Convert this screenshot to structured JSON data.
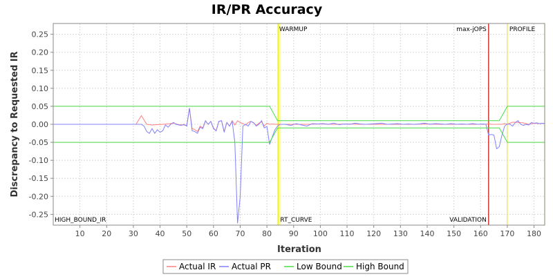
{
  "chart_data": {
    "type": "line",
    "title": "IR/PR Accuracy",
    "xlabel": "Iteration",
    "ylabel": "Discrepancy to Requested IR",
    "xlim": [
      0,
      184
    ],
    "ylim": [
      -0.28,
      0.28
    ],
    "x_ticks": [
      10,
      20,
      30,
      40,
      50,
      60,
      70,
      80,
      90,
      100,
      110,
      120,
      130,
      140,
      150,
      160,
      170,
      180
    ],
    "y_ticks": [
      -0.25,
      -0.2,
      -0.15,
      -0.1,
      -0.05,
      0.0,
      0.05,
      0.1,
      0.15,
      0.2,
      0.25
    ],
    "y_tick_labels": [
      "-0.25",
      "-0.20",
      "-0.15",
      "-0.10",
      "-0.05",
      "0.00",
      "0.05",
      "0.10",
      "0.15",
      "0.20",
      "0.25"
    ],
    "grid": true,
    "plot_background": "#ffffff",
    "legend_position": "bottom",
    "series": [
      {
        "name": "Actual IR",
        "color": "#ff8080",
        "x": [
          0,
          31,
          33,
          35,
          37,
          39,
          41,
          43,
          45,
          47,
          49,
          50,
          51,
          52,
          53,
          54,
          55,
          56,
          57,
          58,
          59,
          60,
          61,
          62,
          63,
          64,
          65,
          66,
          67,
          68,
          69,
          70,
          71,
          72,
          73,
          74,
          75,
          76,
          77,
          78,
          79,
          80,
          81,
          82,
          83,
          84,
          85,
          90,
          95,
          100,
          105,
          110,
          115,
          120,
          125,
          130,
          135,
          140,
          145,
          150,
          155,
          160,
          162,
          163,
          164,
          165,
          166,
          167,
          168,
          169,
          170,
          172,
          174,
          176,
          178,
          180,
          182,
          184
        ],
        "y": [
          0.0,
          0.0,
          0.024,
          0.0,
          -0.002,
          -0.001,
          0.0,
          0.001,
          0.003,
          -0.001,
          -0.002,
          -0.003,
          0.045,
          -0.012,
          -0.015,
          -0.02,
          -0.005,
          -0.01,
          0.01,
          0.0,
          0.008,
          -0.01,
          -0.018,
          0.008,
          0.01,
          -0.02,
          0.005,
          -0.005,
          0.01,
          -0.002,
          0.01,
          0.005,
          0.002,
          -0.002,
          0.005,
          0.008,
          0.004,
          -0.003,
          0.003,
          0.007,
          -0.005,
          0.003,
          0.0,
          0.001,
          0.0,
          0.0,
          0.0,
          0.0,
          0.0,
          0.001,
          0.0,
          0.001,
          0.0,
          0.0,
          0.0,
          0.0,
          0.0,
          0.001,
          0.0,
          0.0,
          0.0,
          0.0,
          0.0,
          0.002,
          0.0,
          0.0,
          0.0,
          0.0,
          0.0,
          0.002,
          0.0,
          0.006,
          0.005,
          0.004,
          0.0,
          0.003,
          0.002,
          0.003
        ]
      },
      {
        "name": "Actual PR",
        "color": "#8080ff",
        "x": [
          0,
          31,
          33,
          34,
          35,
          36,
          37,
          38,
          39,
          40,
          41,
          42,
          43,
          44,
          45,
          46,
          47,
          48,
          49,
          50,
          51,
          52,
          53,
          54,
          55,
          56,
          57,
          58,
          59,
          60,
          61,
          62,
          63,
          64,
          65,
          66,
          67,
          68,
          69,
          70,
          71,
          72,
          73,
          74,
          75,
          76,
          77,
          78,
          79,
          80,
          81,
          82,
          83,
          84,
          85,
          87,
          89,
          91,
          93,
          95,
          97,
          99,
          101,
          103,
          105,
          107,
          109,
          111,
          113,
          115,
          117,
          119,
          121,
          123,
          125,
          127,
          129,
          131,
          133,
          135,
          137,
          139,
          141,
          143,
          145,
          147,
          149,
          151,
          153,
          155,
          157,
          159,
          161,
          162,
          163,
          164,
          165,
          166,
          167,
          168,
          169,
          170,
          171,
          172,
          173,
          174,
          175,
          176,
          177,
          178,
          179,
          180,
          181,
          182,
          183,
          184
        ],
        "y": [
          0.0,
          0.0,
          0.0,
          -0.005,
          -0.02,
          -0.025,
          -0.012,
          -0.025,
          -0.015,
          -0.022,
          -0.018,
          -0.002,
          -0.008,
          0.0,
          0.005,
          0.0,
          -0.002,
          -0.003,
          0.0,
          -0.005,
          0.045,
          -0.018,
          -0.02,
          -0.025,
          -0.008,
          -0.012,
          0.01,
          0.0,
          0.008,
          -0.012,
          -0.018,
          0.008,
          0.01,
          -0.022,
          0.005,
          -0.005,
          0.008,
          -0.05,
          -0.275,
          -0.2,
          -0.005,
          0.0,
          -0.005,
          0.008,
          0.005,
          -0.005,
          0.0,
          0.01,
          -0.01,
          -0.006,
          -0.056,
          -0.035,
          -0.015,
          -0.005,
          0.0,
          0.0,
          -0.003,
          0.002,
          -0.002,
          -0.005,
          0.002,
          0.001,
          0.002,
          0.0,
          0.003,
          -0.001,
          0.001,
          0.0,
          0.003,
          0.001,
          0.0,
          0.001,
          0.002,
          0.003,
          0.0,
          0.001,
          0.002,
          0.0,
          0.001,
          0.0,
          0.001,
          0.003,
          0.0,
          0.002,
          0.001,
          0.0,
          0.002,
          0.0,
          0.001,
          0.0,
          0.002,
          0.0,
          0.001,
          0.0,
          -0.03,
          -0.028,
          -0.03,
          -0.068,
          -0.062,
          -0.03,
          -0.005,
          0.001,
          0.0,
          -0.005,
          0.005,
          0.01,
          0.0,
          -0.003,
          0.0,
          -0.002,
          0.005,
          0.003,
          0.004,
          0.002,
          0.003,
          0.003
        ]
      },
      {
        "name": "Low Bound",
        "color": "#44dd44",
        "x": [
          0,
          81,
          84,
          163,
          166,
          167,
          170,
          184
        ],
        "y": [
          -0.05,
          -0.05,
          -0.01,
          -0.01,
          -0.01,
          -0.01,
          -0.05,
          -0.05
        ]
      },
      {
        "name": "High Bound",
        "color": "#44dd44",
        "x": [
          0,
          81,
          84,
          163,
          166,
          167,
          170,
          184
        ],
        "y": [
          0.05,
          0.05,
          0.01,
          0.01,
          0.01,
          0.01,
          0.05,
          0.05
        ]
      }
    ],
    "markers": [
      {
        "type": "band",
        "x_start": 83.8,
        "x_end": 85.2,
        "color": "#ffff80",
        "label": "WARMUP",
        "label_pos": "top"
      },
      {
        "type": "line",
        "x": 84.2,
        "color": "#e8e840",
        "label": "RT_CURVE",
        "label_pos": "bottom"
      },
      {
        "type": "line",
        "x": 163,
        "color": "#cc2222",
        "label": "max-jOPS",
        "label_pos": "top-left"
      },
      {
        "type": "line",
        "x": 163,
        "color": "#cc2222",
        "label": "VALIDATION",
        "label_pos": "bottom-left"
      },
      {
        "type": "line",
        "x": 170,
        "color": "#e8e840",
        "label": "PROFILE",
        "label_pos": "top"
      },
      {
        "type": "line",
        "x": 184,
        "color": "#e8e840",
        "label": "",
        "label_pos": "none"
      },
      {
        "type": "text",
        "x": 0,
        "label": "HIGH_BOUND_IR",
        "label_pos": "bottom"
      }
    ]
  }
}
